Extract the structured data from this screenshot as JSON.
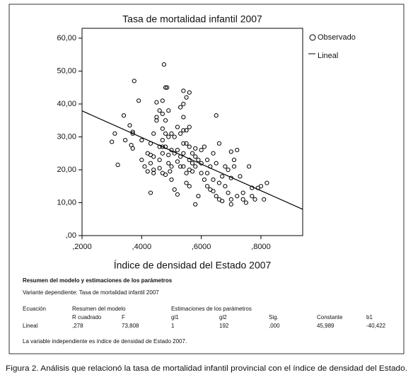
{
  "chart_data": {
    "type": "scatter",
    "title": "Tasa de mortalidad infantil 2007",
    "x_label": "Índice de densidad del Estado 2007",
    "legend": {
      "observed": "Observado",
      "fit": "Lineal",
      "position": "right"
    },
    "color": "#000000",
    "x": [
      0.3,
      0.31,
      0.32,
      0.34,
      0.345,
      0.36,
      0.37,
      0.37,
      0.365,
      0.37,
      0.375,
      0.39,
      0.4,
      0.4,
      0.41,
      0.42,
      0.42,
      0.43,
      0.43,
      0.43,
      0.43,
      0.44,
      0.44,
      0.44,
      0.44,
      0.45,
      0.45,
      0.45,
      0.46,
      0.46,
      0.46,
      0.46,
      0.47,
      0.47,
      0.47,
      0.47,
      0.47,
      0.47,
      0.47,
      0.475,
      0.48,
      0.48,
      0.48,
      0.48,
      0.48,
      0.485,
      0.49,
      0.49,
      0.49,
      0.49,
      0.495,
      0.5,
      0.5,
      0.5,
      0.5,
      0.51,
      0.51,
      0.51,
      0.52,
      0.52,
      0.52,
      0.52,
      0.53,
      0.53,
      0.53,
      0.53,
      0.54,
      0.54,
      0.54,
      0.54,
      0.54,
      0.54,
      0.54,
      0.55,
      0.55,
      0.55,
      0.55,
      0.55,
      0.56,
      0.56,
      0.56,
      0.56,
      0.56,
      0.56,
      0.57,
      0.57,
      0.57,
      0.58,
      0.58,
      0.58,
      0.58,
      0.59,
      0.59,
      0.6,
      0.6,
      0.6,
      0.61,
      0.61,
      0.62,
      0.62,
      0.62,
      0.63,
      0.63,
      0.64,
      0.64,
      0.64,
      0.65,
      0.65,
      0.65,
      0.66,
      0.66,
      0.66,
      0.67,
      0.67,
      0.68,
      0.68,
      0.69,
      0.69,
      0.7,
      0.7,
      0.7,
      0.7,
      0.71,
      0.71,
      0.72,
      0.72,
      0.73,
      0.74,
      0.74,
      0.75,
      0.76,
      0.77,
      0.77,
      0.78,
      0.79,
      0.8,
      0.81,
      0.82
    ],
    "y": [
      28.5,
      31,
      21.5,
      36.5,
      29,
      33.5,
      31.5,
      31,
      27.5,
      26.5,
      47,
      41,
      29,
      23,
      21,
      25,
      19.5,
      28,
      24.5,
      22,
      13,
      31,
      24,
      20,
      19,
      36,
      35,
      40.5,
      38,
      27,
      23,
      20.5,
      41,
      37,
      32.5,
      29,
      27,
      25,
      19,
      52,
      45,
      35,
      31,
      27,
      18.5,
      45,
      38,
      30,
      24.5,
      22,
      19.5,
      31,
      26,
      21,
      17,
      30,
      25,
      14,
      33,
      26,
      22.5,
      12.5,
      39,
      31,
      24,
      21,
      44,
      40,
      36,
      32,
      28,
      25,
      21,
      42,
      32,
      28,
      19,
      16,
      43.5,
      33,
      27,
      23,
      20,
      15,
      25,
      22,
      19.5,
      26.5,
      24,
      21,
      9.5,
      23,
      12,
      26,
      22,
      19,
      27,
      17,
      23,
      19,
      15,
      21,
      14,
      25,
      17,
      13.5,
      36.5,
      22,
      12,
      28,
      16,
      11,
      18,
      10.5,
      21,
      15,
      20,
      13,
      25.5,
      17.5,
      11,
      9.5,
      23,
      21,
      26,
      12,
      18,
      13,
      11,
      10,
      21,
      14.5,
      12,
      11,
      14.5,
      15,
      11,
      16
    ],
    "fit": {
      "intercept": 45.989,
      "slope": -40.422
    },
    "xlim": [
      0.2,
      0.94
    ],
    "ylim": [
      0,
      63
    ],
    "xticks": [
      {
        "value": 0.2,
        "label": ",2000"
      },
      {
        "value": 0.4,
        "label": ",4000"
      },
      {
        "value": 0.6,
        "label": ",6000"
      },
      {
        "value": 0.8,
        "label": ",8000"
      }
    ],
    "yticks": [
      {
        "value": 0,
        "label": ",00"
      },
      {
        "value": 10,
        "label": "10,00"
      },
      {
        "value": 20,
        "label": "20,00"
      },
      {
        "value": 30,
        "label": "30,00"
      },
      {
        "value": 40,
        "label": "40,00"
      },
      {
        "value": 50,
        "label": "50,00"
      },
      {
        "value": 60,
        "label": "60,00"
      }
    ]
  },
  "table": {
    "title": "Resumen del modelo y estimaciones de los parámetros",
    "dependent": "Variante dependiente:  Tasa de mortalidad infantil 2007",
    "group_headers": [
      "Ecuación",
      "Resumen del modelo",
      "Estimaciones de los parámetros"
    ],
    "headers": [
      "R cuadrado",
      "F",
      "gl1",
      "gl2",
      "Sig.",
      "Constante",
      "b1"
    ],
    "rows": [
      [
        "Lineal",
        ",278",
        "73,808",
        "1",
        "192",
        ",000",
        "45,989",
        "-40,422"
      ]
    ],
    "note": "La variable independiente es índice de densidad de Estado 2007."
  },
  "caption": "Figura 2. Análisis que relacionó la tasa de mortalidad infantil provincial con el índice de densidad del Estado."
}
